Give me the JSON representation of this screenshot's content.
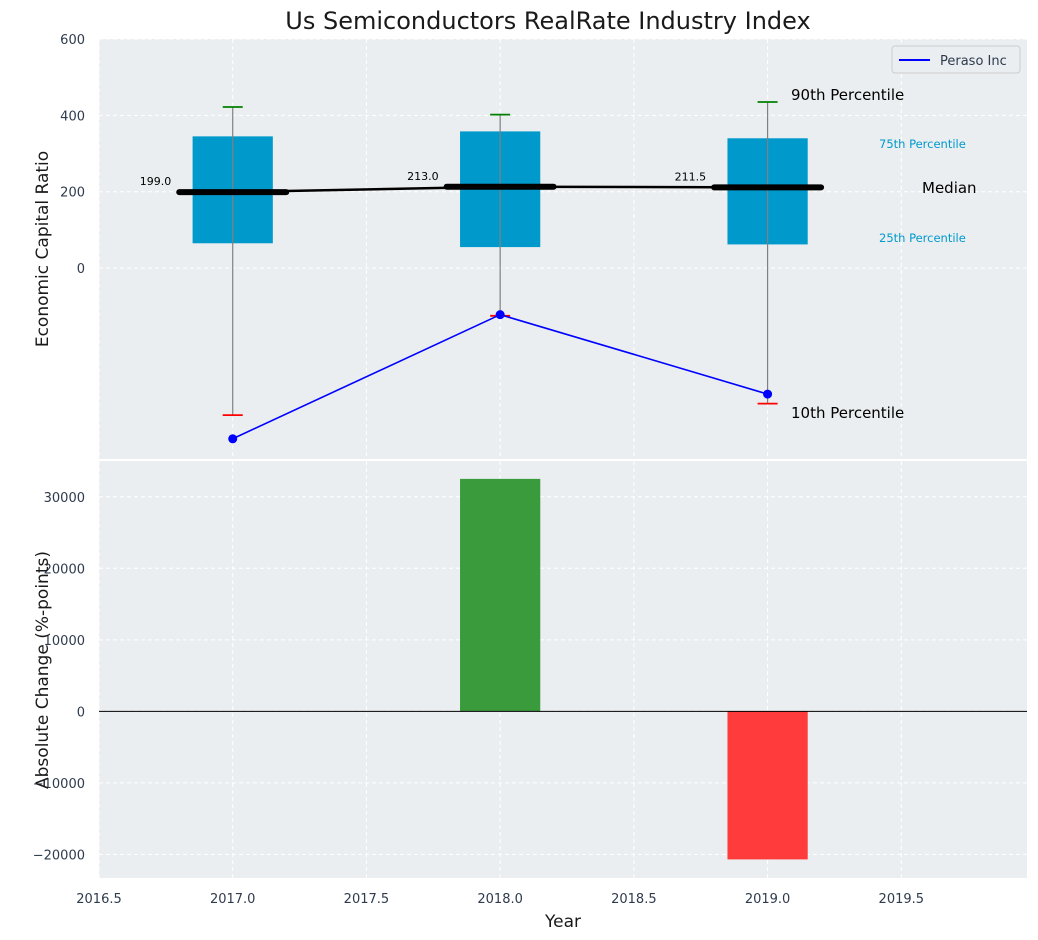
{
  "chart_data": [
    {
      "type": "box",
      "title": "Us Semiconductors RealRate Industry Index",
      "xlabel": "",
      "ylabel": "Economic Capital Ratio",
      "xlim": [
        2016.5,
        2019.97
      ],
      "ylim": [
        -500,
        600
      ],
      "yticks": [
        0,
        200,
        400,
        600
      ],
      "categories": [
        2017,
        2018,
        2019
      ],
      "boxes": [
        {
          "x": 2017,
          "p10": -385,
          "p25": 65,
          "median": 199.0,
          "p75": 345,
          "p90": 422
        },
        {
          "x": 2018,
          "p10": -125,
          "p25": 55,
          "median": 213.0,
          "p75": 358,
          "p90": 402
        },
        {
          "x": 2019,
          "p10": -355,
          "p25": 62,
          "median": 211.5,
          "p75": 340,
          "p90": 435
        }
      ],
      "median_labels": [
        "199.0",
        "213.0",
        "211.5"
      ],
      "series": [
        {
          "name": "Peraso Inc",
          "color": "#0000ff",
          "x": [
            2017,
            2018,
            2019
          ],
          "values": [
            -447,
            -122,
            -330
          ]
        }
      ],
      "annotations": {
        "p90": "90th Percentile",
        "p75": "75th Percentile",
        "median": "Median",
        "p25": "25th Percentile",
        "p10": "10th Percentile"
      },
      "legend": {
        "position": "top-right",
        "entries": [
          "Peraso Inc"
        ]
      },
      "colors": {
        "box": "#0099cc",
        "median": "#000000",
        "p90_cap": "#008000",
        "p10_cap": "#ff0000",
        "background": "#eaeef0"
      }
    },
    {
      "type": "bar",
      "xlabel": "Year",
      "ylabel": "Absolute Change (%-points)",
      "xlim": [
        2016.5,
        2019.97
      ],
      "ylim": [
        -23300,
        35000
      ],
      "yticks": [
        -20000,
        -10000,
        0,
        10000,
        20000,
        30000
      ],
      "xticks": [
        2016.5,
        2017.0,
        2017.5,
        2018.0,
        2018.5,
        2019.0,
        2019.5
      ],
      "xtick_labels": [
        "2016.5",
        "2017.0",
        "2017.5",
        "2018.0",
        "2018.5",
        "2019.0",
        "2019.5"
      ],
      "ytick_labels": [
        "−20000",
        "−10000",
        "0",
        "10000",
        "20000",
        "30000"
      ],
      "categories": [
        2017,
        2018,
        2019
      ],
      "values": [
        0,
        32500,
        -20700
      ],
      "colors": {
        "positive": "#3a9b3c",
        "negative": "#ff3b3b"
      }
    }
  ]
}
